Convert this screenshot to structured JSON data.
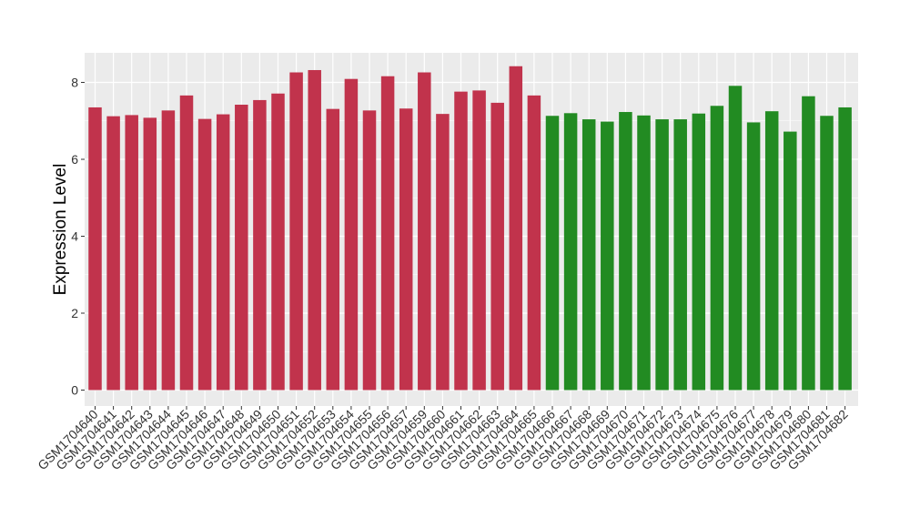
{
  "chart_data": {
    "type": "bar",
    "title": "",
    "xlabel": "",
    "ylabel": "Expression Level",
    "ylim": [
      0,
      8.8
    ],
    "yticks": [
      0,
      2,
      4,
      6,
      8
    ],
    "grid": true,
    "colors": {
      "group1": "#C1334C",
      "group2": "#228B22",
      "panel": "#EBEBEB",
      "gridline": "#FFFFFF"
    },
    "categories": [
      "GSM1704640",
      "GSM1704641",
      "GSM1704642",
      "GSM1704643",
      "GSM1704644",
      "GSM1704645",
      "GSM1704646",
      "GSM1704647",
      "GSM1704648",
      "GSM1704649",
      "GSM1704650",
      "GSM1704651",
      "GSM1704652",
      "GSM1704653",
      "GSM1704654",
      "GSM1704655",
      "GSM1704656",
      "GSM1704657",
      "GSM1704659",
      "GSM1704660",
      "GSM1704661",
      "GSM1704662",
      "GSM1704663",
      "GSM1704664",
      "GSM1704665",
      "GSM1704666",
      "GSM1704667",
      "GSM1704668",
      "GSM1704669",
      "GSM1704670",
      "GSM1704671",
      "GSM1704672",
      "GSM1704673",
      "GSM1704674",
      "GSM1704675",
      "GSM1704676",
      "GSM1704677",
      "GSM1704678",
      "GSM1704679",
      "GSM1704680",
      "GSM1704681",
      "GSM1704682"
    ],
    "values": [
      7.35,
      7.12,
      7.15,
      7.08,
      7.27,
      7.66,
      7.05,
      7.17,
      7.42,
      7.54,
      7.71,
      8.26,
      8.32,
      7.31,
      8.09,
      7.27,
      8.16,
      7.32,
      8.26,
      7.18,
      7.76,
      7.79,
      7.47,
      8.42,
      7.66,
      7.13,
      7.2,
      7.04,
      6.98,
      7.23,
      7.14,
      7.04,
      7.04,
      7.19,
      7.39,
      7.91,
      6.96,
      7.25,
      6.72,
      7.64,
      7.13,
      7.35
    ],
    "group_sizes": [
      25,
      17
    ]
  }
}
